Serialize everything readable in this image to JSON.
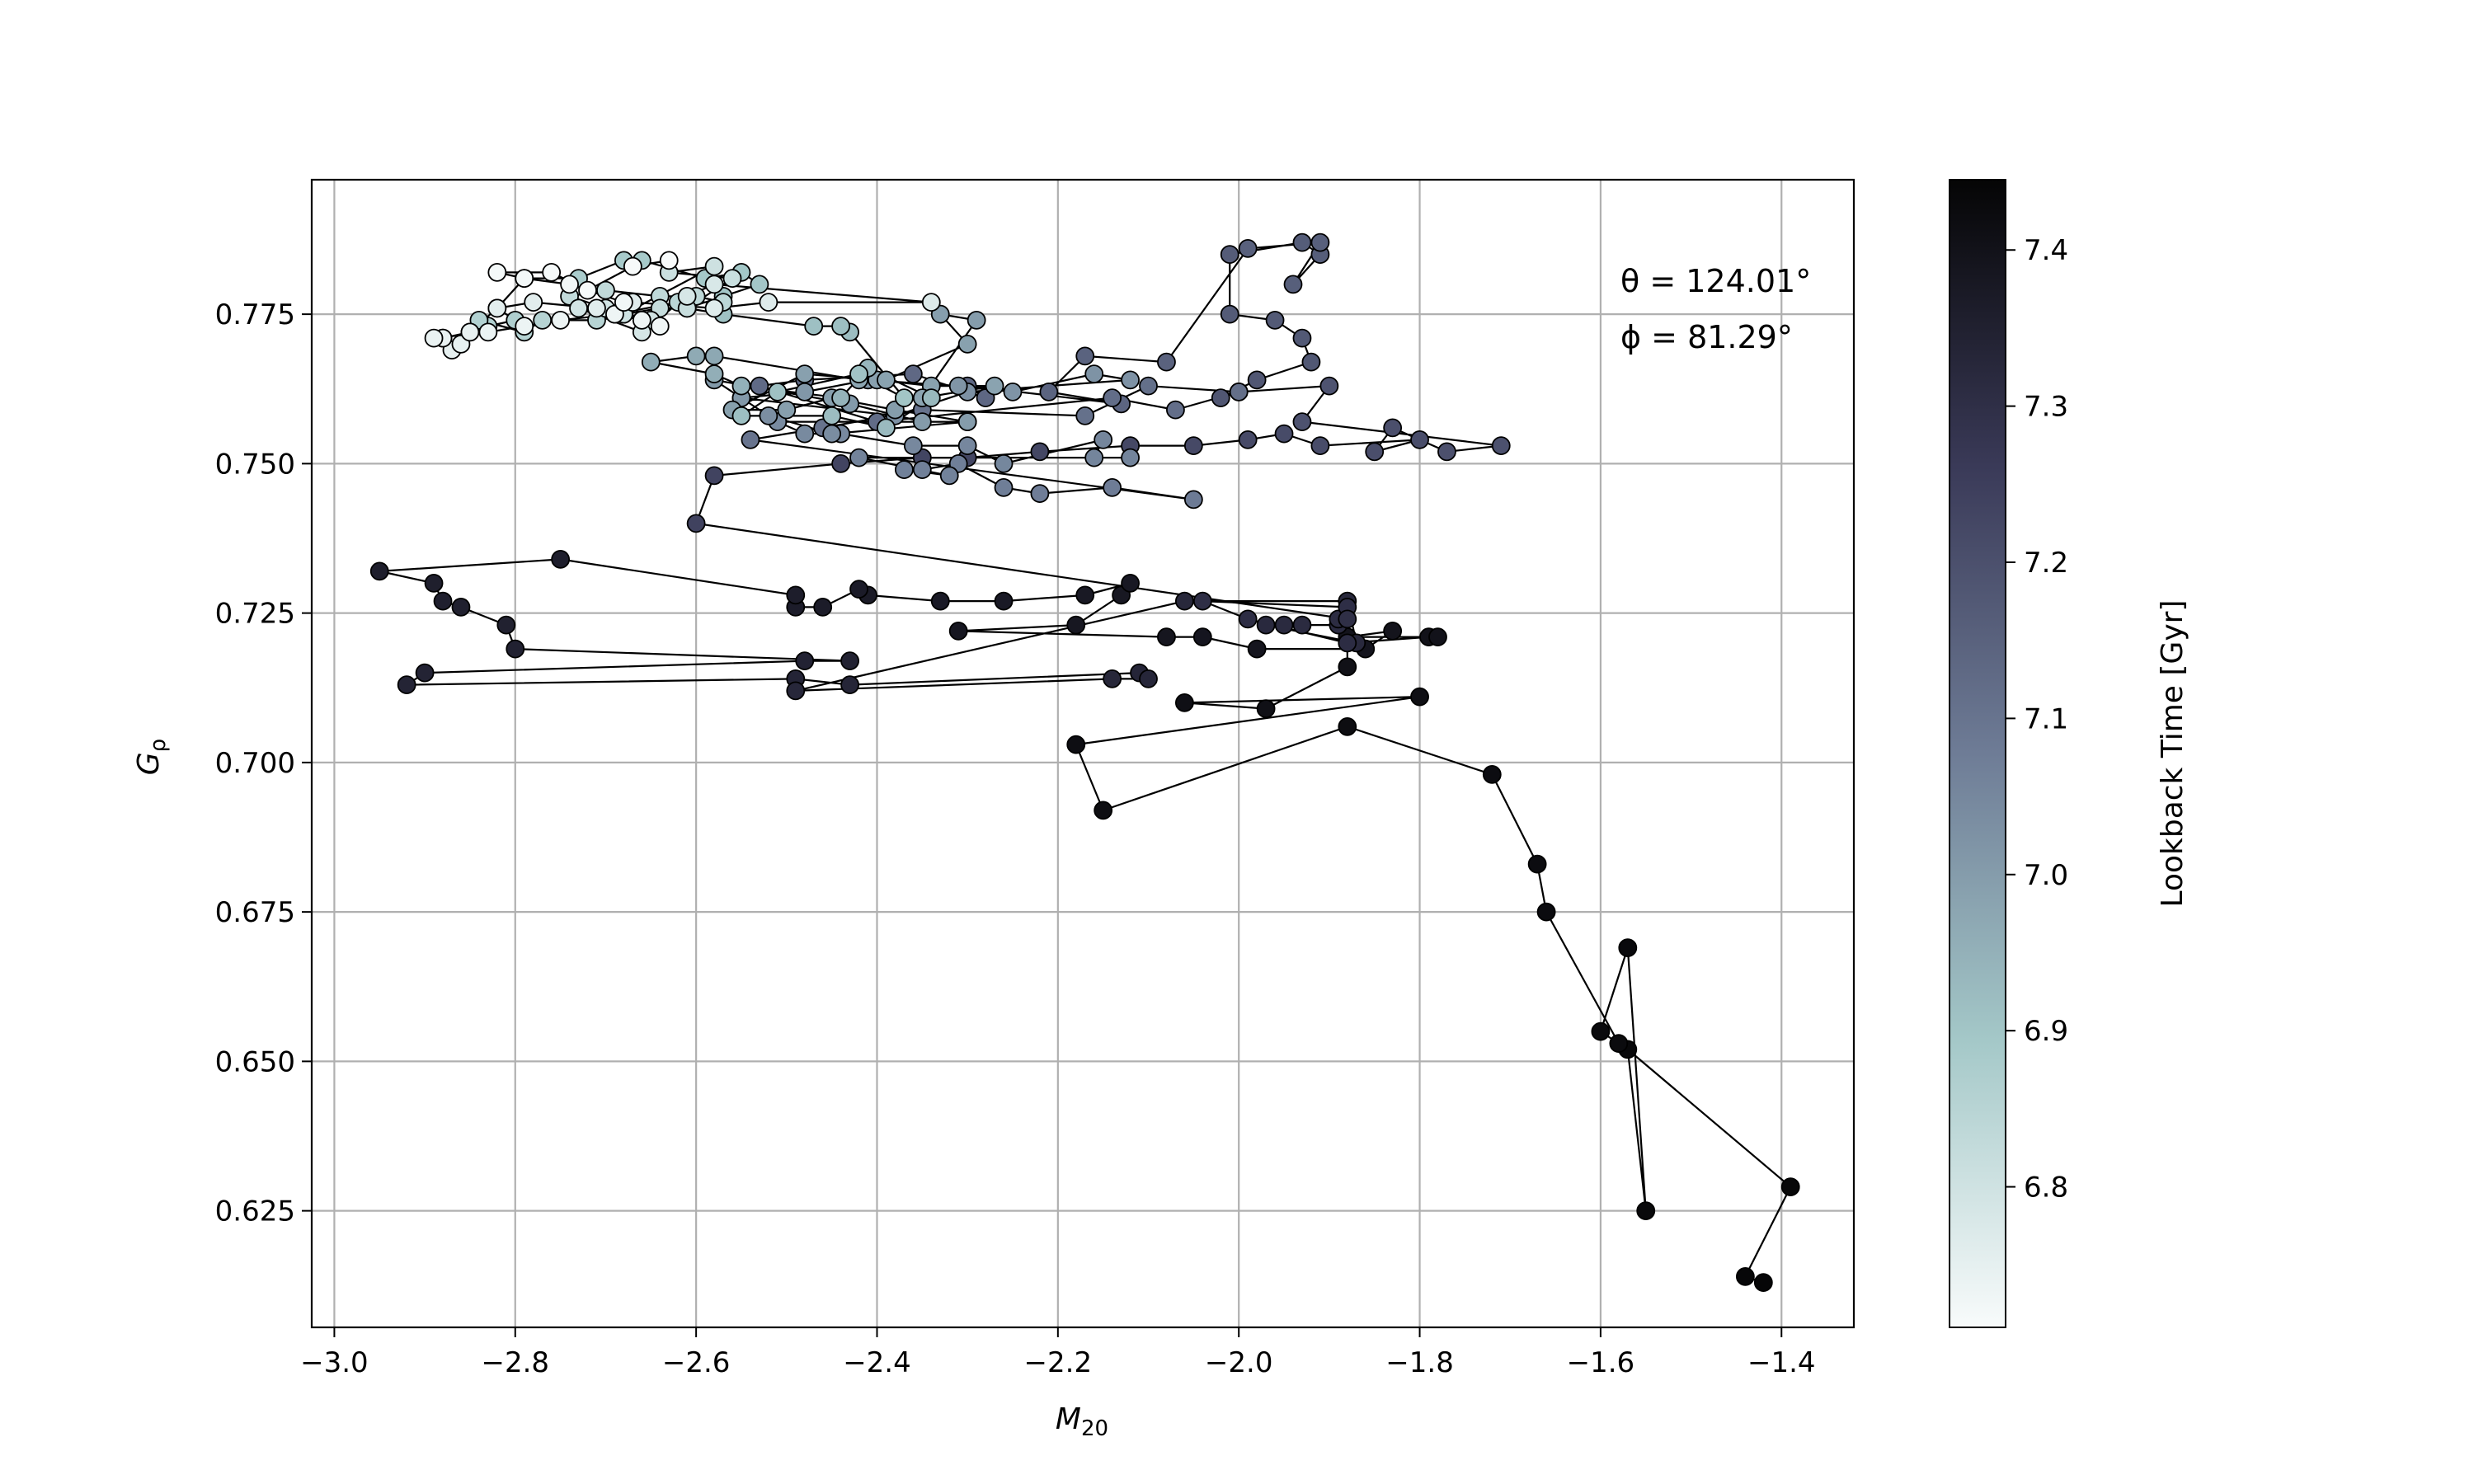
{
  "chart_data": {
    "type": "scatter",
    "title": "",
    "xlabel_main": "M",
    "xlabel_sub": "20",
    "ylabel_main": "G",
    "ylabel_sub": "ρ",
    "xlim": [
      -3.025,
      -1.32
    ],
    "ylim": [
      0.6055,
      0.7975
    ],
    "xticks": [
      -3.0,
      -2.8,
      -2.6,
      -2.4,
      -2.2,
      -2.0,
      -1.8,
      -1.6,
      -1.4
    ],
    "yticks": [
      0.625,
      0.65,
      0.675,
      0.7,
      0.725,
      0.75,
      0.775
    ],
    "xtick_labels": [
      "−3.0",
      "−2.8",
      "−2.6",
      "−2.4",
      "−2.2",
      "−2.0",
      "−1.8",
      "−1.6",
      "−1.4"
    ],
    "ytick_labels": [
      "0.625",
      "0.650",
      "0.675",
      "0.700",
      "0.725",
      "0.750",
      "0.775"
    ],
    "grid": true,
    "annotations": [
      "θ = 124.01°",
      "ϕ = 81.29°"
    ],
    "colorbar": {
      "label": "Lookback Time [Gyr]",
      "range": [
        6.71,
        7.445
      ],
      "ticks": [
        6.8,
        6.9,
        7.0,
        7.1,
        7.2,
        7.3,
        7.4
      ],
      "tick_labels": [
        "6.8",
        "6.9",
        "7.0",
        "7.1",
        "7.2",
        "7.3",
        "7.4"
      ],
      "colormap": "bone_r",
      "stops": [
        [
          0.0,
          "#f8fbfb"
        ],
        [
          0.25,
          "#a4c8c8"
        ],
        [
          0.5,
          "#6e7c96"
        ],
        [
          0.75,
          "#3a3a58"
        ],
        [
          1.0,
          "#050505"
        ]
      ]
    },
    "series": [
      {
        "x": [
          -1.42,
          -1.44,
          -1.39,
          -1.57,
          -1.55,
          -1.57,
          -1.6,
          -1.58,
          -1.66,
          -1.67,
          -1.72,
          -1.88,
          -2.15,
          -2.18,
          -1.8,
          -2.06,
          -1.97,
          -1.88,
          -1.88,
          -1.79,
          -1.78,
          -1.88,
          -1.83,
          -1.86,
          -1.98,
          -2.04,
          -2.08,
          -2.31,
          -2.18,
          -2.13,
          -2.12,
          -2.17,
          -2.26,
          -2.33,
          -2.41,
          -2.42,
          -2.46,
          -2.49,
          -2.49,
          -2.75,
          -2.95,
          -2.89,
          -2.88,
          -2.86,
          -2.81,
          -2.8,
          -2.43,
          -2.48,
          -2.9,
          -2.92,
          -2.49,
          -2.43,
          -2.11,
          -2.1,
          -2.14,
          -2.49,
          -2.06,
          -1.88,
          -1.87,
          -1.97,
          -1.95,
          -1.93,
          -1.89,
          -1.89,
          -1.88,
          -1.99,
          -2.04,
          -1.88,
          -1.88
        ],
        "y": [
          0.613,
          0.614,
          0.629,
          0.652,
          0.625,
          0.669,
          0.655,
          0.653,
          0.675,
          0.683,
          0.698,
          0.706,
          0.692,
          0.703,
          0.711,
          0.71,
          0.709,
          0.716,
          0.72,
          0.721,
          0.721,
          0.721,
          0.722,
          0.719,
          0.719,
          0.721,
          0.721,
          0.722,
          0.723,
          0.728,
          0.73,
          0.728,
          0.727,
          0.727,
          0.728,
          0.729,
          0.726,
          0.726,
          0.728,
          0.734,
          0.732,
          0.73,
          0.727,
          0.726,
          0.723,
          0.719,
          0.717,
          0.717,
          0.715,
          0.713,
          0.714,
          0.713,
          0.715,
          0.714,
          0.714,
          0.712,
          0.727,
          0.727,
          0.72,
          0.723,
          0.723,
          0.723,
          0.723,
          0.724,
          0.72,
          0.724,
          0.727,
          0.726,
          0.724
        ]
      },
      {
        "x": [
          -2.6,
          -2.58,
          -2.44,
          -2.35,
          -2.3,
          -2.22,
          -2.12,
          -2.05,
          -1.99,
          -1.95,
          -1.91,
          -1.8,
          -1.85,
          -1.83,
          -1.77,
          -1.71,
          -1.93,
          -1.9,
          -2.0,
          -2.02,
          -1.98,
          -1.92,
          -1.93,
          -1.96,
          -2.01,
          -2.01,
          -1.93,
          -1.91,
          -1.94,
          -1.91,
          -1.99,
          -2.08,
          -2.17,
          -2.21,
          -2.13,
          -2.3,
          -2.28,
          -2.36,
          -2.48,
          -2.53,
          -2.4,
          -2.14,
          -2.07,
          -2.0,
          -2.1,
          -2.17,
          -2.35,
          -2.46,
          -2.54
        ],
        "y": [
          0.74,
          0.748,
          0.75,
          0.751,
          0.751,
          0.752,
          0.753,
          0.753,
          0.754,
          0.755,
          0.753,
          0.754,
          0.752,
          0.756,
          0.752,
          0.753,
          0.757,
          0.763,
          0.762,
          0.761,
          0.764,
          0.767,
          0.771,
          0.774,
          0.775,
          0.785,
          0.787,
          0.785,
          0.78,
          0.787,
          0.786,
          0.767,
          0.768,
          0.762,
          0.76,
          0.763,
          0.761,
          0.765,
          0.764,
          0.763,
          0.757,
          0.761,
          0.759,
          0.762,
          0.763,
          0.758,
          0.759,
          0.756,
          0.754
        ]
      },
      {
        "x": [
          -2.05,
          -2.14,
          -2.22,
          -2.26,
          -2.31,
          -2.35,
          -2.37,
          -2.32,
          -2.42,
          -2.12,
          -2.16,
          -2.15,
          -2.26,
          -2.3,
          -2.36,
          -2.44,
          -2.48,
          -2.51,
          -2.3,
          -2.45,
          -2.52,
          -2.55,
          -2.38,
          -2.3,
          -2.12,
          -2.16,
          -2.25,
          -2.31,
          -2.41,
          -2.48,
          -2.55,
          -2.58,
          -2.43,
          -2.35,
          -2.3,
          -2.38,
          -2.45,
          -2.5,
          -2.56,
          -2.48,
          -2.4,
          -2.34,
          -2.27,
          -2.35
        ],
        "y": [
          0.744,
          0.746,
          0.745,
          0.746,
          0.75,
          0.749,
          0.749,
          0.748,
          0.751,
          0.751,
          0.751,
          0.754,
          0.75,
          0.753,
          0.753,
          0.755,
          0.755,
          0.757,
          0.757,
          0.755,
          0.758,
          0.761,
          0.758,
          0.762,
          0.764,
          0.765,
          0.762,
          0.763,
          0.764,
          0.762,
          0.761,
          0.764,
          0.76,
          0.757,
          0.757,
          0.759,
          0.761,
          0.759,
          0.759,
          0.765,
          0.764,
          0.763,
          0.763,
          0.761
        ]
      },
      {
        "x": [
          -2.29,
          -2.33,
          -2.3,
          -2.39,
          -2.42,
          -2.58,
          -2.6,
          -2.65,
          -2.58,
          -2.55,
          -2.44,
          -2.41,
          -2.34,
          -2.39,
          -2.45,
          -2.55,
          -2.51,
          -2.42,
          -2.37
        ],
        "y": [
          0.774,
          0.775,
          0.77,
          0.764,
          0.764,
          0.768,
          0.768,
          0.767,
          0.765,
          0.763,
          0.761,
          0.766,
          0.761,
          0.756,
          0.758,
          0.758,
          0.762,
          0.765,
          0.761
        ]
      },
      {
        "x": [
          -2.43,
          -2.44,
          -2.47,
          -2.57,
          -2.61,
          -2.57,
          -2.53,
          -2.55,
          -2.59,
          -2.66,
          -2.68,
          -2.73,
          -2.79,
          -2.82,
          -2.8,
          -2.83,
          -2.84,
          -2.79,
          -2.77,
          -2.71,
          -2.69,
          -2.62,
          -2.57,
          -2.6,
          -2.64,
          -2.7,
          -2.74,
          -2.68,
          -2.64,
          -2.61,
          -2.56,
          -2.63,
          -2.58,
          -2.68,
          -2.65,
          -2.7,
          -2.73,
          -2.66,
          -2.61,
          -2.58
        ],
        "y": [
          0.772,
          0.773,
          0.773,
          0.775,
          0.776,
          0.778,
          0.78,
          0.782,
          0.781,
          0.784,
          0.784,
          0.781,
          0.781,
          0.776,
          0.774,
          0.773,
          0.774,
          0.772,
          0.774,
          0.774,
          0.775,
          0.777,
          0.777,
          0.778,
          0.778,
          0.779,
          0.778,
          0.775,
          0.776,
          0.776,
          0.781,
          0.782,
          0.783,
          0.775,
          0.774,
          0.776,
          0.776,
          0.772,
          0.778,
          0.78
        ]
      },
      {
        "x": [
          -2.34,
          -2.52,
          -2.58,
          -2.67,
          -2.71,
          -2.78,
          -2.82,
          -2.85,
          -2.88,
          -2.87,
          -2.86,
          -2.85,
          -2.88,
          -2.89,
          -2.83,
          -2.79,
          -2.75,
          -2.69,
          -2.66,
          -2.64,
          -2.68,
          -2.74,
          -2.79,
          -2.82,
          -2.76,
          -2.72,
          -2.67,
          -2.63
        ],
        "y": [
          0.777,
          0.777,
          0.776,
          0.777,
          0.776,
          0.777,
          0.776,
          0.772,
          0.771,
          0.769,
          0.77,
          0.772,
          0.771,
          0.771,
          0.772,
          0.773,
          0.774,
          0.775,
          0.774,
          0.773,
          0.777,
          0.78,
          0.781,
          0.782,
          0.782,
          0.779,
          0.783,
          0.784
        ]
      }
    ],
    "series_time": [
      [
        7.44,
        7.3
      ],
      [
        7.24,
        7.1
      ],
      [
        7.08,
        6.98
      ],
      [
        7.0,
        6.9
      ],
      [
        6.92,
        6.78
      ],
      [
        6.77,
        6.71
      ]
    ]
  }
}
